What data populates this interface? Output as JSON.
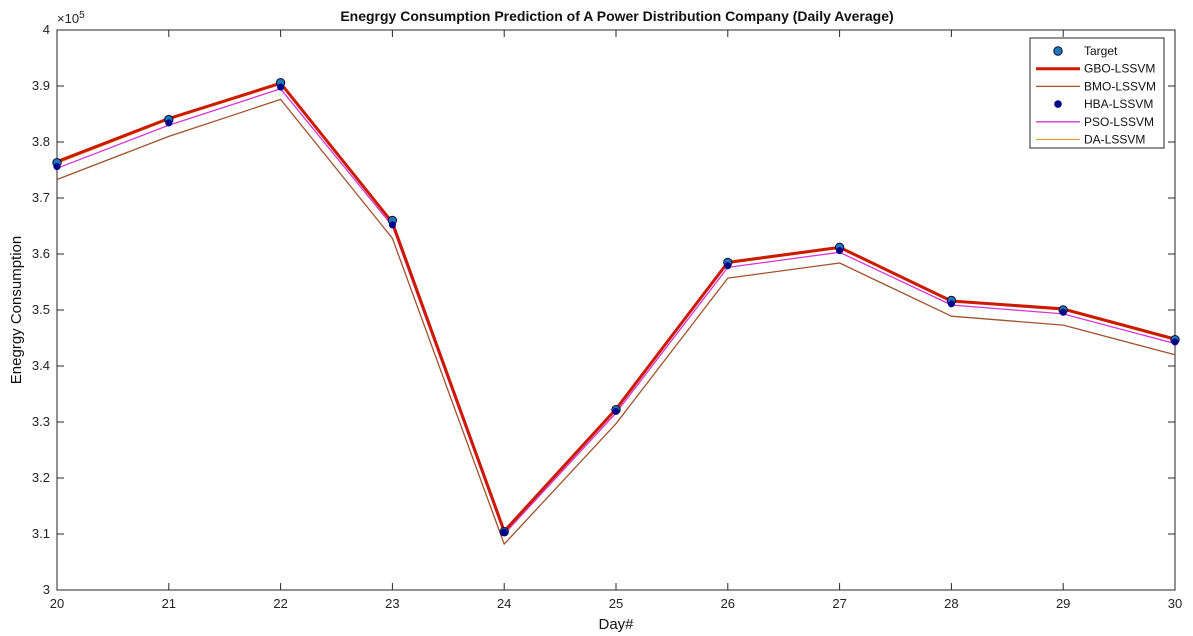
{
  "chart_data": {
    "type": "line",
    "title": "Enegrgy Consumption Prediction of A Power Distribution Company (Daily Average)",
    "xlabel": "Day#",
    "ylabel": "Enegrgy Consumption",
    "y_exponent_label": "×10",
    "y_exponent_power": "5",
    "xlim": [
      20,
      30
    ],
    "ylim": [
      3.0,
      4.0
    ],
    "x": [
      20,
      21,
      22,
      23,
      24,
      25,
      26,
      27,
      28,
      29,
      30
    ],
    "xticks": [
      "20",
      "21",
      "22",
      "23",
      "24",
      "25",
      "26",
      "27",
      "28",
      "29",
      "30"
    ],
    "yticks": [
      "3",
      "3.1",
      "3.2",
      "3.3",
      "3.4",
      "3.5",
      "3.6",
      "3.7",
      "3.8",
      "3.9",
      "4"
    ],
    "grid": false,
    "legend_position": "top-right",
    "series": [
      {
        "name": "Target",
        "style": "marker",
        "color": "#1f77b4",
        "values": [
          3.763,
          3.84,
          3.906,
          3.66,
          3.104,
          3.322,
          3.585,
          3.612,
          3.517,
          3.5,
          3.447
        ]
      },
      {
        "name": "GBO-LSSVM",
        "style": "line",
        "color": "#cc1a00",
        "values": [
          3.765,
          3.842,
          3.905,
          3.656,
          3.105,
          3.323,
          3.585,
          3.612,
          3.516,
          3.502,
          3.448
        ]
      },
      {
        "name": "BMO-LSSVM",
        "style": "line",
        "color": "#a0522d",
        "values": [
          3.733,
          3.81,
          3.876,
          3.628,
          3.082,
          3.297,
          3.557,
          3.584,
          3.489,
          3.473,
          3.42
        ]
      },
      {
        "name": "HBA-LSSVM",
        "style": "marker",
        "color": "#00008b",
        "values": [
          3.756,
          3.834,
          3.898,
          3.652,
          3.103,
          3.319,
          3.579,
          3.606,
          3.511,
          3.496,
          3.443
        ]
      },
      {
        "name": "PSO-LSSVM",
        "style": "line",
        "color": "#d633d6",
        "values": [
          3.753,
          3.83,
          3.895,
          3.65,
          3.1,
          3.316,
          3.576,
          3.603,
          3.509,
          3.493,
          3.44
        ]
      },
      {
        "name": "DA-LSSVM",
        "style": "line",
        "color": "#e0a030",
        "values": [
          3.762,
          3.84,
          3.903,
          3.655,
          3.104,
          3.322,
          3.583,
          3.61,
          3.515,
          3.5,
          3.446
        ]
      }
    ]
  }
}
